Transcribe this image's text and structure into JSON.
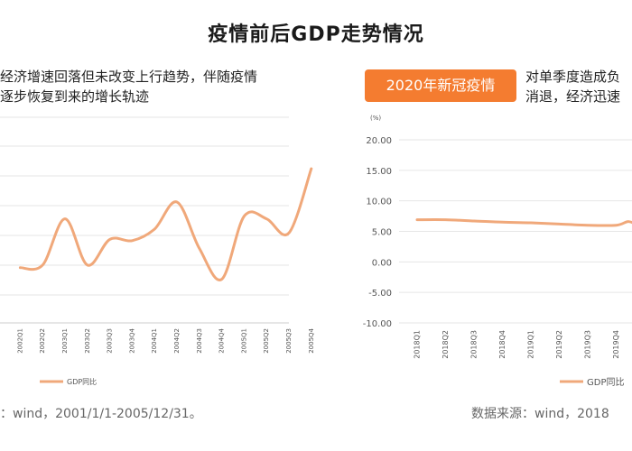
{
  "page": {
    "title": "疫情前后GDP走势情况",
    "left_desc": [
      "经济增速回落但未改变上行趋势，伴随疫情",
      "逐步恢复到来的增长轨迹"
    ],
    "right_badge": "2020年新冠疫情",
    "right_desc": [
      "对单季度造成负",
      "消退，经济迅速"
    ],
    "left_source": "：wind，2001/1/1-2005/12/31。",
    "right_source": "数据来源：wind，2018"
  },
  "colors": {
    "line": "#f0a87a",
    "badge": "#f47c30",
    "grid": "#e6e6e6",
    "axis_text": "#555555"
  },
  "chart_data": [
    {
      "type": "line",
      "categories": [
        "2002Q1",
        "2002Q2",
        "2003Q1",
        "2003Q2",
        "2003Q3",
        "2003Q4",
        "2004Q1",
        "2004Q2",
        "2004Q3",
        "2004Q4",
        "2005Q1",
        "2005Q2",
        "2005Q3",
        "2005Q4"
      ],
      "series": [
        {
          "name": "GDP同比",
          "values": [
            7.3,
            7.5,
            11.1,
            7.5,
            9.5,
            9.4,
            10.3,
            12.4,
            8.8,
            6.4,
            11.3,
            11.1,
            10.0,
            15.0
          ]
        }
      ],
      "ylim": [
        3,
        19
      ],
      "grid": true,
      "legend": "bottom-right"
    },
    {
      "type": "line",
      "categories": [
        "2018Q1",
        "2018Q2",
        "2018Q3",
        "2018Q4",
        "2019Q1",
        "2019Q2",
        "2019Q3",
        "2019Q4"
      ],
      "series": [
        {
          "name": "GDP同比",
          "values": [
            6.9,
            6.9,
            6.7,
            6.5,
            6.4,
            6.2,
            6.0,
            6.0
          ]
        }
      ],
      "ylabel": "(%)",
      "yticks": [
        "20.00",
        "15.00",
        "10.00",
        "5.00",
        "0.00",
        "-5.00",
        "-10.00"
      ],
      "ylim": [
        -10,
        20
      ],
      "grid": true,
      "legend": "bottom-right"
    }
  ]
}
